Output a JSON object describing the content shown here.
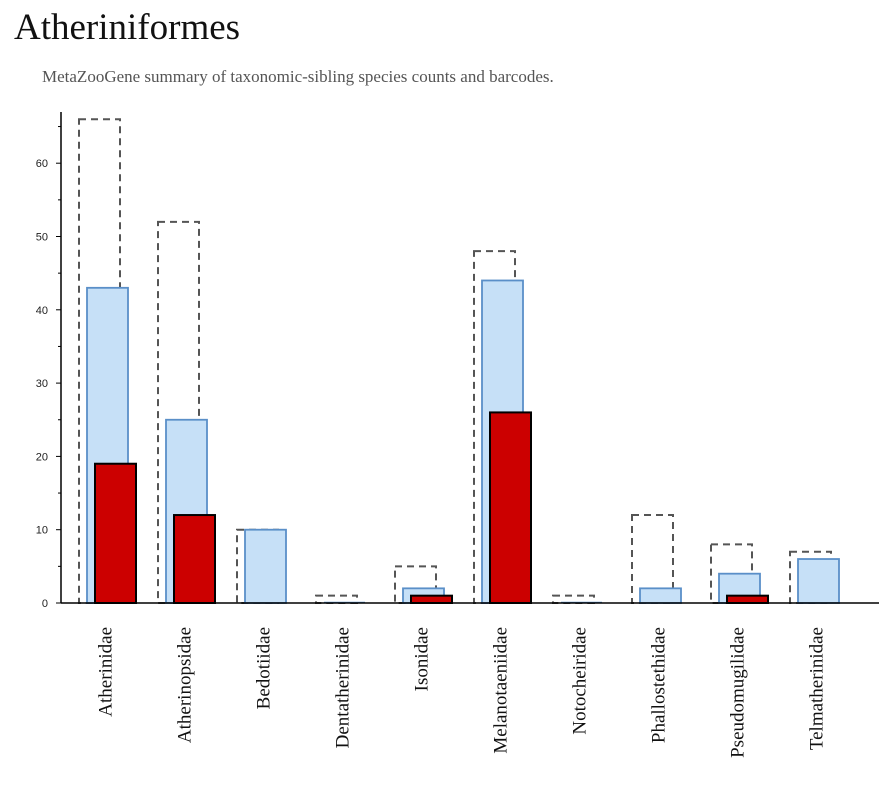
{
  "chart_data": {
    "type": "bar",
    "title": "Atheriniformes",
    "subtitle": "MetaZooGene summary of taxonomic-sibling species counts and barcodes.",
    "xlabel": "",
    "ylabel": "",
    "ylim": [
      0,
      67
    ],
    "yticks": [
      0,
      10,
      20,
      30,
      40,
      50,
      60
    ],
    "grid": false,
    "legend": "none",
    "categories": [
      "Atherinidae",
      "Atherinopsidae",
      "Bedotiidae",
      "Dentatherinidae",
      "Isonidae",
      "Melanotaeniidae",
      "Notocheiridae",
      "Phallostethidae",
      "Pseudomugilidae",
      "Telmatherinidae"
    ],
    "series": [
      {
        "style": "dashed-outline",
        "color": "#555555",
        "values": [
          66,
          52,
          10,
          1,
          5,
          48,
          1,
          12,
          8,
          7
        ]
      },
      {
        "style": "filled",
        "color": "#c6e0f7",
        "stroke": "#5a8fc8",
        "values": [
          43,
          25,
          10,
          0,
          2,
          44,
          0,
          2,
          4,
          6
        ]
      },
      {
        "style": "filled",
        "color": "#cc0000",
        "stroke": "#000000",
        "values": [
          19,
          12,
          0,
          0,
          1,
          26,
          0,
          0,
          1,
          0
        ]
      }
    ]
  }
}
